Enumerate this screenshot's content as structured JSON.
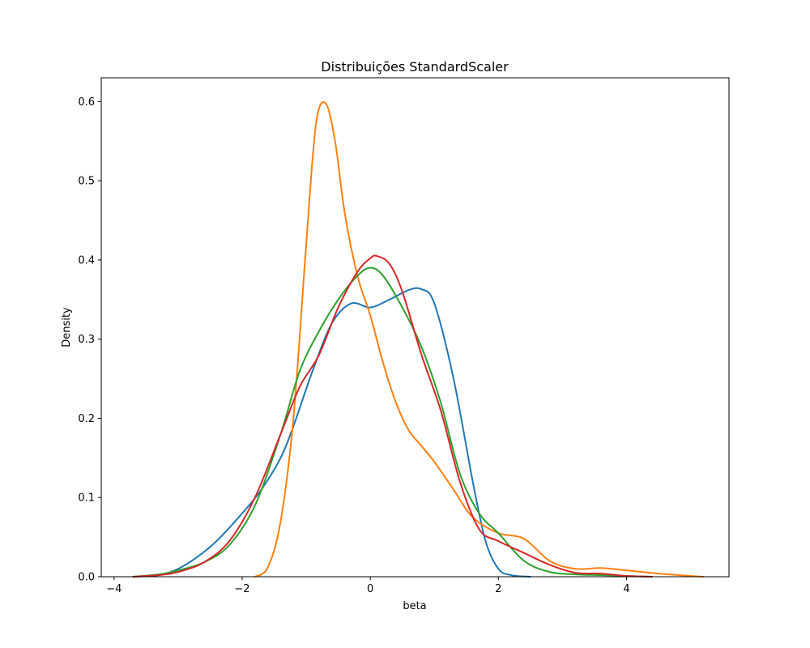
{
  "chart_data": {
    "type": "line",
    "title": "Distribuições StandardScaler",
    "xlabel": "beta",
    "ylabel": "Density",
    "xlim": [
      -4.2,
      5.6
    ],
    "ylim": [
      0,
      0.63
    ],
    "xticks": [
      -4,
      -2,
      0,
      2,
      4
    ],
    "xtick_labels": [
      "−4",
      "−2",
      "0",
      "2",
      "4"
    ],
    "yticks": [
      0.0,
      0.1,
      0.2,
      0.3,
      0.4,
      0.5,
      0.6
    ],
    "ytick_labels": [
      "0.0",
      "0.1",
      "0.2",
      "0.3",
      "0.4",
      "0.5",
      "0.6"
    ],
    "grid": false,
    "legend": "none",
    "series": [
      {
        "color": "#1f77b4",
        "x": [
          -3.7,
          -3.3,
          -3.0,
          -2.7,
          -2.4,
          -2.0,
          -1.7,
          -1.4,
          -1.2,
          -0.9,
          -0.6,
          -0.3,
          0.0,
          0.3,
          0.6,
          0.8,
          1.0,
          1.3,
          1.6,
          1.8,
          2.0,
          2.2,
          2.5
        ],
        "y": [
          0.0,
          0.002,
          0.01,
          0.025,
          0.045,
          0.08,
          0.11,
          0.15,
          0.19,
          0.26,
          0.32,
          0.345,
          0.34,
          0.35,
          0.362,
          0.363,
          0.345,
          0.25,
          0.12,
          0.045,
          0.01,
          0.002,
          0.0
        ]
      },
      {
        "color": "#ff7f0e",
        "x": [
          -1.8,
          -1.6,
          -1.4,
          -1.2,
          -1.0,
          -0.85,
          -0.7,
          -0.55,
          -0.4,
          -0.2,
          0.0,
          0.2,
          0.4,
          0.6,
          0.8,
          1.0,
          1.3,
          1.6,
          2.0,
          2.4,
          2.8,
          3.2,
          3.6,
          4.0,
          4.5,
          5.0,
          5.2
        ],
        "y": [
          0.0,
          0.012,
          0.07,
          0.2,
          0.42,
          0.57,
          0.598,
          0.55,
          0.46,
          0.38,
          0.33,
          0.27,
          0.22,
          0.185,
          0.165,
          0.145,
          0.11,
          0.075,
          0.055,
          0.048,
          0.02,
          0.01,
          0.011,
          0.008,
          0.004,
          0.001,
          0.0
        ]
      },
      {
        "color": "#2ca02c",
        "x": [
          -3.7,
          -3.3,
          -3.0,
          -2.6,
          -2.2,
          -1.8,
          -1.4,
          -1.1,
          -0.8,
          -0.5,
          -0.2,
          0.0,
          0.2,
          0.5,
          0.8,
          1.1,
          1.4,
          1.7,
          2.0,
          2.4,
          2.8,
          3.2,
          3.6,
          4.0,
          4.4
        ],
        "y": [
          0.0,
          0.003,
          0.008,
          0.018,
          0.04,
          0.09,
          0.18,
          0.26,
          0.31,
          0.35,
          0.38,
          0.39,
          0.38,
          0.34,
          0.29,
          0.22,
          0.13,
          0.08,
          0.055,
          0.02,
          0.006,
          0.003,
          0.002,
          0.001,
          0.0
        ]
      },
      {
        "color": "#d62728",
        "x": [
          -3.7,
          -3.3,
          -3.0,
          -2.6,
          -2.2,
          -1.8,
          -1.4,
          -1.1,
          -0.8,
          -0.5,
          -0.2,
          0.0,
          0.1,
          0.3,
          0.5,
          0.8,
          1.1,
          1.4,
          1.7,
          2.0,
          2.4,
          2.8,
          3.2,
          3.6,
          4.0,
          4.4
        ],
        "y": [
          0.0,
          0.002,
          0.006,
          0.018,
          0.045,
          0.1,
          0.18,
          0.24,
          0.28,
          0.34,
          0.385,
          0.402,
          0.405,
          0.395,
          0.36,
          0.28,
          0.21,
          0.12,
          0.06,
          0.045,
          0.03,
          0.015,
          0.005,
          0.004,
          0.001,
          0.0
        ]
      }
    ]
  }
}
